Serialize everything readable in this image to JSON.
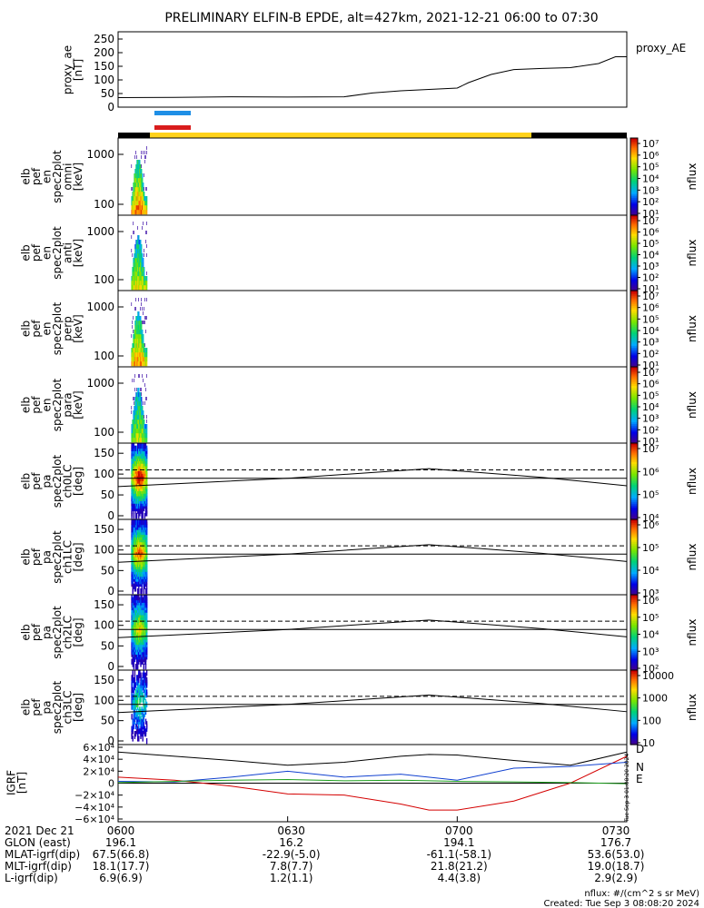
{
  "title": "PRELIMINARY ELFIN-B EPDE, alt=427km, 2021-12-21 06:00 to 07:30",
  "colors": {
    "blue_bar": "#1f8fe6",
    "red_bar": "#d91c1c",
    "yellow_bar": "#ffd21a",
    "black": "#000000",
    "comp_D": "#d40000",
    "comp_N": "#1040d0",
    "comp_E": "#1ea01e"
  },
  "proxy_panel": {
    "ylabel": [
      "proxy_ae",
      "[nT]"
    ],
    "legend": "proxy_AE",
    "ticks": [
      "250",
      "200",
      "150",
      "100",
      "50",
      "0"
    ]
  },
  "spec_panels": [
    {
      "ylabel": [
        "elb",
        "pef",
        "en",
        "spec2plot",
        "omni",
        "[keV]"
      ],
      "ticks": [
        "1000",
        "100"
      ],
      "zlabel": "nflux",
      "cbar_ticks": [
        "10⁷",
        "10⁶",
        "10⁵",
        "10⁴",
        "10³",
        "10²",
        "10¹"
      ]
    },
    {
      "ylabel": [
        "elb",
        "pef",
        "en",
        "spec2plot",
        "anti",
        "[keV]"
      ],
      "ticks": [
        "1000",
        "100"
      ],
      "zlabel": "nflux",
      "cbar_ticks": [
        "10⁷",
        "10⁶",
        "10⁵",
        "10⁴",
        "10³",
        "10²",
        "10¹"
      ]
    },
    {
      "ylabel": [
        "elb",
        "pef",
        "en",
        "spec2plot",
        "perp",
        "[keV]"
      ],
      "ticks": [
        "1000",
        "100"
      ],
      "zlabel": "nflux",
      "cbar_ticks": [
        "10⁷",
        "10⁶",
        "10⁵",
        "10⁴",
        "10³",
        "10²",
        "10¹"
      ]
    },
    {
      "ylabel": [
        "elb",
        "pef",
        "en",
        "spec2plot",
        "para",
        "[keV]"
      ],
      "ticks": [
        "1000",
        "100"
      ],
      "zlabel": "nflux",
      "cbar_ticks": [
        "10⁷",
        "10⁶",
        "10⁵",
        "10⁴",
        "10³",
        "10²",
        "10¹"
      ]
    }
  ],
  "pa_panels": [
    {
      "ylabel": [
        "elb",
        "pef",
        "pa",
        "spec2plot",
        "ch0LC",
        "[deg]"
      ],
      "ticks": [
        "150",
        "100",
        "50",
        "0"
      ],
      "zlabel": "nflux",
      "cbar_ticks": [
        "10⁷",
        "10⁶",
        "10⁵",
        "10⁴"
      ]
    },
    {
      "ylabel": [
        "elb",
        "pef",
        "pa",
        "spec2plot",
        "ch1LC",
        "[deg]"
      ],
      "ticks": [
        "150",
        "100",
        "50",
        "0"
      ],
      "zlabel": "nflux",
      "cbar_ticks": [
        "10⁶",
        "10⁵",
        "10⁴",
        "10³"
      ]
    },
    {
      "ylabel": [
        "elb",
        "pef",
        "pa",
        "spec2plot",
        "ch2LC",
        "[deg]"
      ],
      "ticks": [
        "150",
        "100",
        "50",
        "0"
      ],
      "zlabel": "nflux",
      "cbar_ticks": [
        "10⁶",
        "10⁵",
        "10⁴",
        "10³",
        "10²"
      ]
    },
    {
      "ylabel": [
        "elb",
        "pef",
        "pa",
        "spec2plot",
        "ch3LC",
        "[deg]"
      ],
      "ticks": [
        "150",
        "100",
        "50",
        "0"
      ],
      "zlabel": "nflux",
      "cbar_ticks": [
        "10000",
        "1000",
        "100",
        "10"
      ]
    }
  ],
  "igrf_panel": {
    "ylabel": [
      "IGRF",
      "[nT]"
    ],
    "ticks": [
      "6×10⁴",
      "4×10⁴",
      "2×10⁴",
      "0",
      "−2×10⁴",
      "−4×10⁴",
      "−6×10⁴"
    ],
    "legend": [
      "D",
      "N",
      "E"
    ],
    "side_note": "Tue Sep 3 01:08:20 2024"
  },
  "time_axis": {
    "rows": [
      {
        "label": "2021 Dec 21",
        "values": [
          "0600",
          "0630",
          "0700",
          "0730"
        ]
      },
      {
        "label": "GLON (east)",
        "values": [
          "196.1",
          "16.2",
          "194.1",
          "176.7"
        ]
      },
      {
        "label": "MLAT-igrf(dip)",
        "values": [
          "67.5(66.8)",
          "-22.9(-5.0)",
          "-61.1(-58.1)",
          "53.6(53.0)"
        ]
      },
      {
        "label": "MLT-igrf(dip)",
        "values": [
          "18.1(17.7)",
          "7.8(7.7)",
          "21.8(21.2)",
          "19.0(18.7)"
        ]
      },
      {
        "label": "L-igrf(dip)",
        "values": [
          "6.9(6.9)",
          "1.2(1.1)",
          "4.4(3.8)",
          "2.9(2.9)"
        ]
      }
    ]
  },
  "footer": {
    "units": "nflux: #/(cm^2 s sr MeV)",
    "created": "Created: Tue Sep  3 08:08:20 2024"
  },
  "chart_data": {
    "type": "line",
    "title": "PRELIMINARY ELFIN-B EPDE, alt=427km, 2021-12-21 06:00 to 07:30",
    "x_range_minutes": [
      0,
      90
    ],
    "x_ticks": [
      "0600",
      "0630",
      "0700",
      "0730"
    ],
    "proxy_ae": {
      "ylabel": "proxy_ae [nT]",
      "ylim": [
        0,
        260
      ],
      "x": [
        0,
        10,
        20,
        30,
        40,
        45,
        50,
        55,
        60,
        62,
        66,
        70,
        75,
        80,
        85,
        88,
        90
      ],
      "y": [
        35,
        36,
        38,
        37,
        38,
        52,
        60,
        65,
        70,
        90,
        120,
        138,
        142,
        145,
        160,
        185,
        185
      ]
    },
    "spec_window_minutes": [
      2.8,
      4.5
    ],
    "loss_cone_deg": [
      {
        "x": 0,
        "y": 70
      },
      {
        "x": 30,
        "y": 90
      },
      {
        "x": 55,
        "y": 113
      },
      {
        "x": 75,
        "y": 92
      },
      {
        "x": 90,
        "y": 72
      }
    ],
    "anti_loss_cone_deg": [
      {
        "x": 0,
        "y": 110
      },
      {
        "x": 30,
        "y": 90
      },
      {
        "x": 55,
        "y": 67
      },
      {
        "x": 75,
        "y": 88
      },
      {
        "x": 90,
        "y": 108
      }
    ],
    "igrf_series": [
      {
        "name": "D",
        "x": [
          0,
          10,
          20,
          30,
          40,
          50,
          55,
          60,
          70,
          80,
          90
        ],
        "y": [
          10000,
          5000,
          -5000,
          -18000,
          -20000,
          -35000,
          -45000,
          -45000,
          -30000,
          0,
          45000
        ]
      },
      {
        "name": "N",
        "x": [
          0,
          10,
          20,
          30,
          40,
          50,
          60,
          70,
          80,
          90
        ],
        "y": [
          3000,
          2000,
          10000,
          20000,
          10000,
          15000,
          5000,
          25000,
          28000,
          35000
        ]
      },
      {
        "name": "E",
        "x": [
          0,
          10,
          20,
          30,
          40,
          50,
          60,
          70,
          80,
          90
        ],
        "y": [
          1000,
          3000,
          5000,
          6000,
          4000,
          5000,
          3000,
          2000,
          1000,
          -1000
        ]
      },
      {
        "x": [
          0,
          10,
          20,
          30,
          40,
          50,
          55,
          60,
          70,
          80,
          90
        ],
        "y": [
          52000,
          45000,
          38000,
          30000,
          35000,
          45000,
          48000,
          47000,
          38000,
          30000,
          52000
        ]
      }
    ]
  }
}
